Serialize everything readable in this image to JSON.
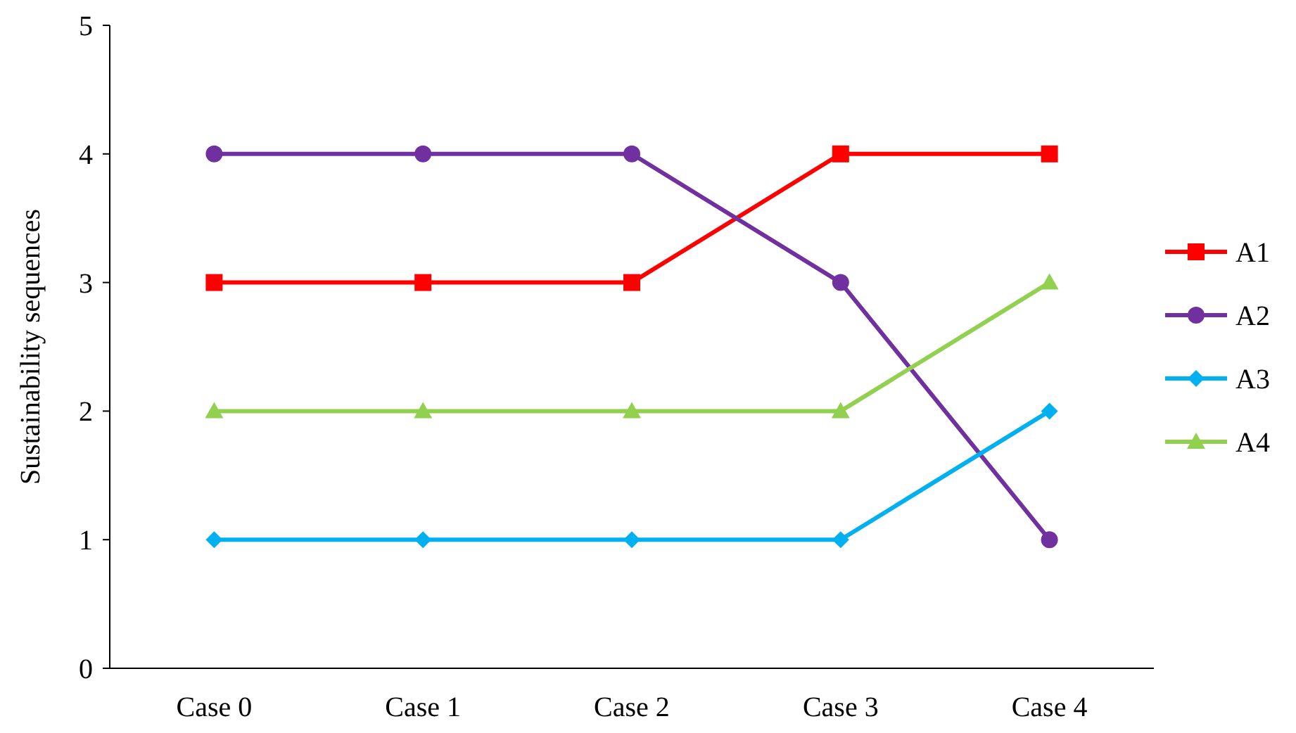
{
  "chart_data": {
    "type": "line",
    "ylabel": "Sustainability sequences",
    "categories": [
      "Case 0",
      "Case 1",
      "Case 2",
      "Case 3",
      "Case 4"
    ],
    "ylim": [
      0,
      5
    ],
    "yticks": [
      0,
      1,
      2,
      3,
      4,
      5
    ],
    "grid": false,
    "legend": "right",
    "series": [
      {
        "name": "A1",
        "color": "#ff0000",
        "marker": "square",
        "values": [
          3,
          3,
          3,
          4,
          4
        ]
      },
      {
        "name": "A2",
        "color": "#7030a0",
        "marker": "circle",
        "values": [
          4,
          4,
          4,
          3,
          1
        ]
      },
      {
        "name": "A3",
        "color": "#00b0f0",
        "marker": "diamond",
        "values": [
          1,
          1,
          1,
          1,
          2
        ]
      },
      {
        "name": "A4",
        "color": "#92d050",
        "marker": "triangle",
        "values": [
          2,
          2,
          2,
          2,
          3
        ]
      }
    ]
  }
}
